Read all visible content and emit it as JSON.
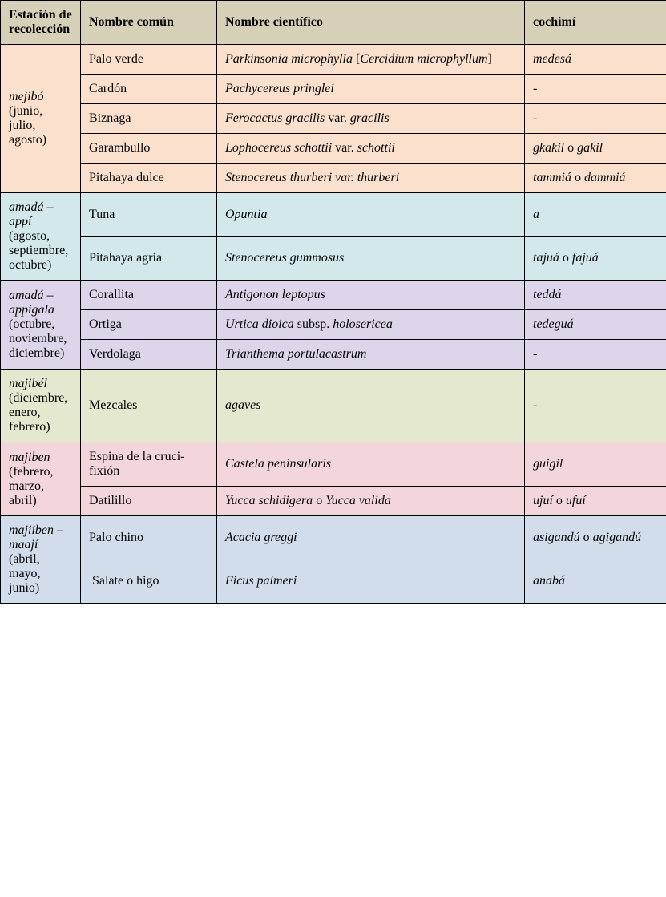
{
  "columns": {
    "c1": "Estación de reco­lección",
    "c2": "Nombre común",
    "c3": "Nombre científico",
    "c4": "cochimí"
  },
  "groups": [
    {
      "bg": "g1",
      "season_html": "<span class=\"it\">mejibó</span> (junio, julio, agosto)",
      "rows": [
        {
          "common": "Palo verde",
          "sci_html": "<span class=\"it\">Parkinsonia microphylla</span> [<span class=\"it\">Cercidium microphy­llum</span>]",
          "cochimi_html": "<span class=\"it\">medesá</span>",
          "cochimi_center": false
        },
        {
          "common": "Cardón",
          "sci_html": "<span class=\"it\">Pachycereus pringlei</span>",
          "cochimi_html": "-",
          "cochimi_center": true
        },
        {
          "common": "Biznaga",
          "sci_html": "<span class=\"it\">Ferocactus gracilis</span> var. <span class=\"it\">gracilis</span>",
          "cochimi_html": "-",
          "cochimi_center": true
        },
        {
          "common": "Garambullo",
          "sci_html": "<span class=\"it\">Lophocereus schottii</span> var. <span class=\"it\">schottii</span>",
          "cochimi_html": "<span class=\"it\">gkakil</span> o <span class=\"it\">gakil</span>",
          "cochimi_center": false
        },
        {
          "common": "Pitahaya dulce",
          "sci_html": "<span class=\"it\">Stenocereus thurberi var. thurberi</span>",
          "cochimi_html": "<span class=\"it\">tammiá</span> o <span class=\"it\">dammiá</span>",
          "cochimi_center": false
        }
      ]
    },
    {
      "bg": "g2",
      "season_html": "<span class=\"it\">amadá – appí</span> (agosto, septiem­bre, octu­bre)",
      "rows": [
        {
          "common": "Tuna",
          "sci_html": "<span class=\"it\">Opuntia</span>",
          "cochimi_html": "<span class=\"it\">a</span>",
          "cochimi_center": false
        },
        {
          "common": "Pitahaya agria",
          "sci_html": "<span class=\"it\">Stenocereus gummosus</span>",
          "cochimi_html": "<span class=\"it\">tajuá</span> o <span class=\"it\">fajuá</span>",
          "cochimi_center": false
        }
      ]
    },
    {
      "bg": "g3",
      "season_html": "<span class=\"it\">amadá – appigala</span> (octubre, noviem­bre, di­ciembre)",
      "rows": [
        {
          "common": "Corallita",
          "sci_html": "<span class=\"it\">Antigonon leptopus</span>",
          "cochimi_html": "<span class=\"it\">teddá</span>",
          "cochimi_center": false
        },
        {
          "common": "Ortiga",
          "sci_html": "<span class=\"it\">Urtica dioica</span> subsp. <span class=\"it\">holosericea</span>",
          "cochimi_html": "<span class=\"it\">tedeguá</span>",
          "cochimi_center": false
        },
        {
          "common": "Verdolaga",
          "sci_html": "<span class=\"it\">Trianthema portulacastrum</span>",
          "cochimi_html": "-",
          "cochimi_center": true
        }
      ]
    },
    {
      "bg": "g4",
      "season_html": "<span class=\"it\">majibél</span> (diciem­bre, enero, febrero)",
      "rows": [
        {
          "common": "Mezcales",
          "sci_html": "<span class=\"it\">agaves</span>",
          "cochimi_html": "-",
          "cochimi_center": true
        }
      ]
    },
    {
      "bg": "g5",
      "season_html": "<span class=\"it\">majiben</span> (febrero, marzo, abril)",
      "rows": [
        {
          "common": "Espina de la cruci­fixión",
          "sci_html": "<span class=\"it\">Castela peninsularis</span>",
          "cochimi_html": "<span class=\"it\">guigil</span>",
          "cochimi_center": false
        },
        {
          "common": "Datilillo",
          "sci_html": "<span class=\"it\">Yucca schidigera</span> o <span class=\"it\">Yucca valida</span>",
          "cochimi_html": "<span class=\"it\">ujuí</span> o <span class=\"it\">ufuí</span>",
          "cochimi_center": false
        }
      ]
    },
    {
      "bg": "g6",
      "season_html": "<span class=\"it\">majiiben – maají</span> (abril, mayo, junio)",
      "rows": [
        {
          "common": "Palo chino",
          "sci_html": "<span class=\"it\">Acacia greggi</span>",
          "cochimi_html": "<span class=\"it\">asigandú</span> o <span class=\"it\">agi­gandú</span>",
          "cochimi_center": false
        },
        {
          "common": "&nbsp;Salate o higo",
          "sci_html": "<span class=\"it\">Ficus palmeri</span>",
          "cochimi_html": "<span class=\"it\">anabá</span>",
          "cochimi_center": false
        }
      ]
    }
  ]
}
